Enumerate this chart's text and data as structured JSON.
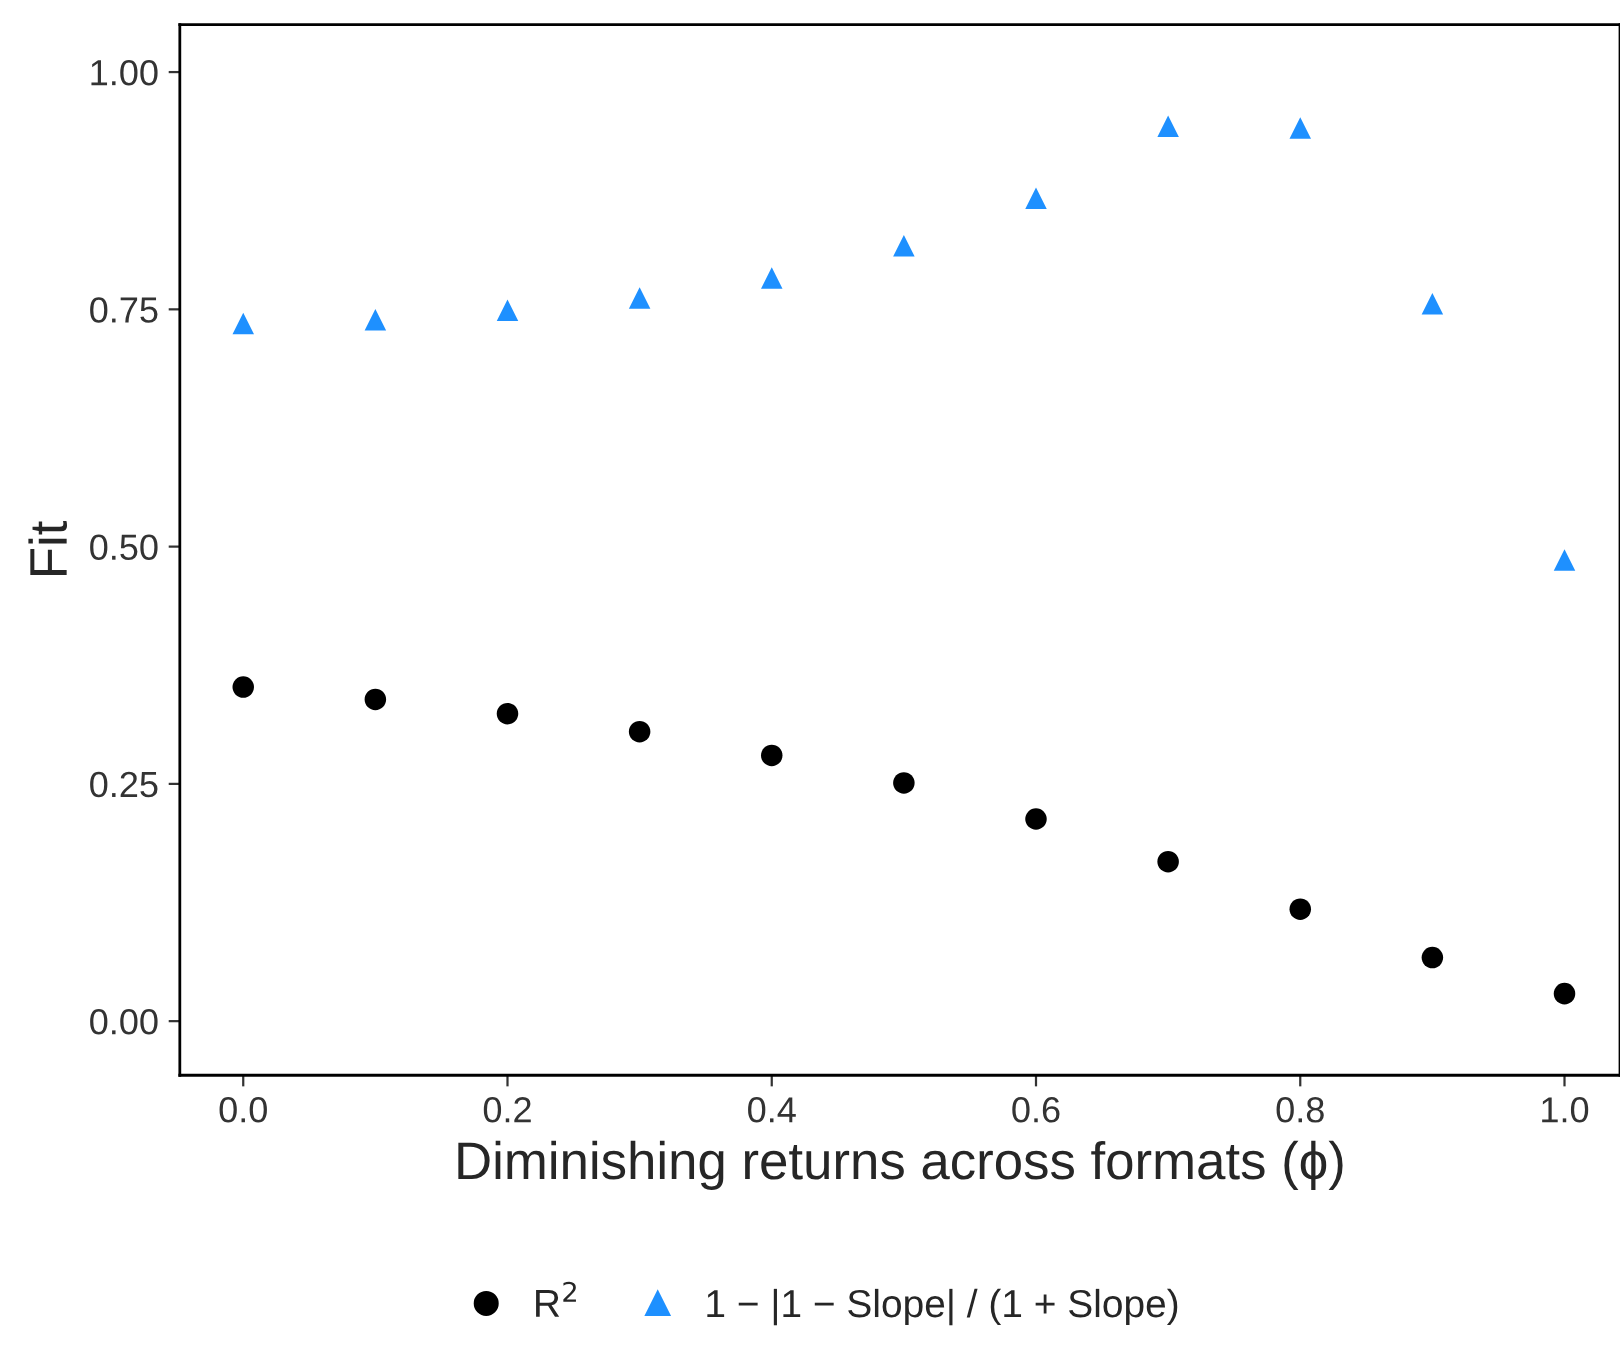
{
  "chart_data": {
    "type": "scatter",
    "xlabel": "Diminishing returns across formats (ϕ)",
    "ylabel": "Fit",
    "x": [
      0.0,
      0.1,
      0.2,
      0.3,
      0.4,
      0.5,
      0.6,
      0.7,
      0.8,
      0.9,
      1.0
    ],
    "series": [
      {
        "name": "R$^{2}$",
        "color": "#000000",
        "marker": "circle",
        "values": [
          0.352,
          0.339,
          0.324,
          0.305,
          0.28,
          0.251,
          0.213,
          0.168,
          0.118,
          0.067,
          0.029
        ]
      },
      {
        "name": "1 − |1 − Slope| / (1 + Slope)",
        "color": "#1e90ff",
        "marker": "triangle",
        "values": [
          0.735,
          0.739,
          0.749,
          0.762,
          0.783,
          0.817,
          0.867,
          0.943,
          0.941,
          0.756,
          0.486
        ]
      }
    ],
    "xlim": [
      -0.048,
      1.042
    ],
    "ylim": [
      -0.057,
      1.05
    ],
    "xticks": [
      {
        "value": 0,
        "label": "0.0"
      },
      {
        "value": 0.2,
        "label": "0.2"
      },
      {
        "value": 0.4,
        "label": "0.4"
      },
      {
        "value": 0.6,
        "label": "0.6"
      },
      {
        "value": 0.8,
        "label": "0.8"
      },
      {
        "value": 1,
        "label": "1.0"
      }
    ],
    "yticks": [
      {
        "value": 0,
        "label": "0.00"
      },
      {
        "value": 0.25,
        "label": "0.25"
      },
      {
        "value": 0.5,
        "label": "0.50"
      },
      {
        "value": 0.75,
        "label": "0.75"
      },
      {
        "value": 1,
        "label": "1.00"
      }
    ],
    "grid": false,
    "legend": "bottom"
  }
}
